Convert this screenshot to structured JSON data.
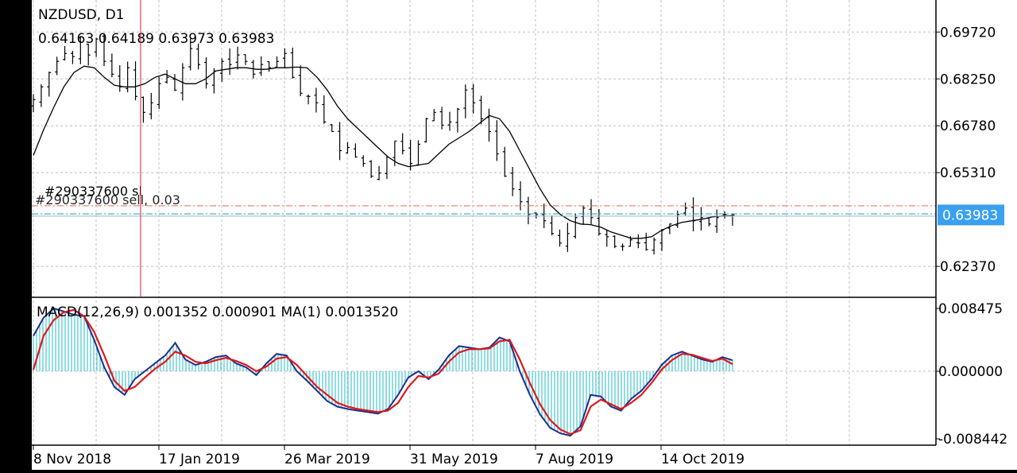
{
  "chart_data": [
    {
      "type": "candlestick",
      "title": "NZDUSD, D1",
      "ohlc_label": "0.64163 0.64189 0.63973 0.63983",
      "current_price": 0.63983,
      "current_price_label": "0.63983",
      "ylim": [
        0.6145,
        0.706
      ],
      "y_ticks": [
        "0.69720",
        "0.68250",
        "0.66780",
        "0.65310",
        "0.62370"
      ],
      "order_label": "#290337600 sl",
      "order_label_2": "#290337600 sell, 0.03",
      "order_stop_loss": 0.6427,
      "order_entry": 0.6398,
      "x_ticks": [
        "8 Nov 2018",
        "17 Jan 2019",
        "26 Mar 2019",
        "31 May 2019",
        "7 Aug 2019",
        "14 Oct 2019"
      ],
      "close_series": [
        0.676,
        0.68,
        0.6845,
        0.688,
        0.6905,
        0.6895,
        0.694,
        0.69,
        0.695,
        0.688,
        0.684,
        0.68,
        0.686,
        0.677,
        0.672,
        0.675,
        0.681,
        0.683,
        0.679,
        0.686,
        0.692,
        0.687,
        0.681,
        0.685,
        0.688,
        0.687,
        0.69,
        0.688,
        0.684,
        0.687,
        0.686,
        0.688,
        0.6905,
        0.683,
        0.678,
        0.677,
        0.675,
        0.669,
        0.666,
        0.66,
        0.661,
        0.658,
        0.656,
        0.652,
        0.653,
        0.658,
        0.663,
        0.66,
        0.656,
        0.662,
        0.67,
        0.672,
        0.668,
        0.669,
        0.673,
        0.679,
        0.675,
        0.67,
        0.666,
        0.659,
        0.652,
        0.648,
        0.644,
        0.64,
        0.64,
        0.638,
        0.634,
        0.631,
        0.634,
        0.639,
        0.642,
        0.639,
        0.634,
        0.633,
        0.63,
        0.63,
        0.632,
        0.631,
        0.629,
        0.632,
        0.635,
        0.637,
        0.64,
        0.642,
        0.638,
        0.639,
        0.637,
        0.639,
        0.64,
        0.6398
      ],
      "ma_series": [
        0.6585,
        0.6665,
        0.6735,
        0.68,
        0.6845,
        0.6865,
        0.686,
        0.683,
        0.6805,
        0.68,
        0.68,
        0.681,
        0.683,
        0.684,
        0.6825,
        0.681,
        0.681,
        0.6825,
        0.685,
        0.6855,
        0.686,
        0.686,
        0.6855,
        0.6855,
        0.686,
        0.686,
        0.6862,
        0.686,
        0.683,
        0.679,
        0.674,
        0.67,
        0.667,
        0.664,
        0.661,
        0.658,
        0.656,
        0.655,
        0.6555,
        0.656,
        0.659,
        0.662,
        0.664,
        0.666,
        0.6685,
        0.671,
        0.67,
        0.666,
        0.66,
        0.654,
        0.648,
        0.643,
        0.64,
        0.638,
        0.637,
        0.6368,
        0.636,
        0.6345,
        0.6335,
        0.6325,
        0.6325,
        0.633,
        0.635,
        0.6365,
        0.6375,
        0.638,
        0.6385,
        0.6392,
        0.6395,
        0.6396
      ]
    },
    {
      "type": "macd",
      "title": "MACD(12,26,9) 0.001352 0.000901 MA(1) 0.0013520",
      "ylim": [
        -0.0092,
        0.0092
      ],
      "y_ticks": [
        "0.008475",
        "0.000000",
        "-0.008442"
      ],
      "histogram": [
        0.0045,
        0.0068,
        0.008,
        0.0076,
        0.0072,
        0.007,
        0.004,
        0.0005,
        -0.002,
        -0.003,
        -0.001,
        0.0,
        0.001,
        0.002,
        0.0036,
        0.0015,
        0.0008,
        0.0012,
        0.0018,
        0.002,
        0.001,
        0.0005,
        -0.0005,
        0.001,
        0.0022,
        0.002,
        0.0,
        -0.0012,
        -0.0025,
        -0.0038,
        -0.0045,
        -0.0048,
        -0.005,
        -0.0052,
        -0.0054,
        -0.0048,
        -0.003,
        -0.0008,
        0.0,
        -0.001,
        0.0002,
        0.002,
        0.0032,
        0.003,
        0.0028,
        0.003,
        0.0043,
        0.0038,
        0.0,
        -0.003,
        -0.0055,
        -0.0072,
        -0.0079,
        -0.0082,
        -0.007,
        -0.003,
        -0.0032,
        -0.0045,
        -0.005,
        -0.0035,
        -0.0025,
        -0.001,
        0.0008,
        0.002,
        0.0025,
        0.002,
        0.0015,
        0.0012,
        0.0018,
        0.0014
      ],
      "signal_series": [
        0.0002,
        0.0045,
        0.0065,
        0.0075,
        0.0078,
        0.007,
        0.005,
        0.002,
        -0.0012,
        -0.0025,
        -0.002,
        -0.0008,
        0.0003,
        0.0012,
        0.0025,
        0.002,
        0.0012,
        0.001,
        0.0014,
        0.0017,
        0.0013,
        0.0008,
        0.0,
        0.0006,
        0.0016,
        0.0018,
        0.0008,
        -0.0006,
        -0.002,
        -0.003,
        -0.004,
        -0.0045,
        -0.0048,
        -0.005,
        -0.0052,
        -0.005,
        -0.004,
        -0.002,
        -0.0006,
        -0.0008,
        -0.0003,
        0.0012,
        0.0024,
        0.0028,
        0.0028,
        0.0029,
        0.0038,
        0.004,
        0.0015,
        -0.0015,
        -0.0042,
        -0.0062,
        -0.0074,
        -0.008,
        -0.0075,
        -0.0045,
        -0.0036,
        -0.0042,
        -0.0048,
        -0.004,
        -0.003,
        -0.0015,
        0.0002,
        0.0014,
        0.0022,
        0.0021,
        0.0017,
        0.0013,
        0.0016,
        0.0009
      ]
    }
  ],
  "colors": {
    "background": "#ffffff",
    "candles": "#000000",
    "ma": "#000000",
    "grid": "#bfbfbf",
    "histogram": "#45c6d0",
    "macd_line": "#1d2f8c",
    "signal_line": "#e0191b",
    "price_label_bg": "#3aa0f0",
    "order_line": "#e07050",
    "entry_line": "#2a9d8f",
    "crosshair": "#cc2222"
  }
}
